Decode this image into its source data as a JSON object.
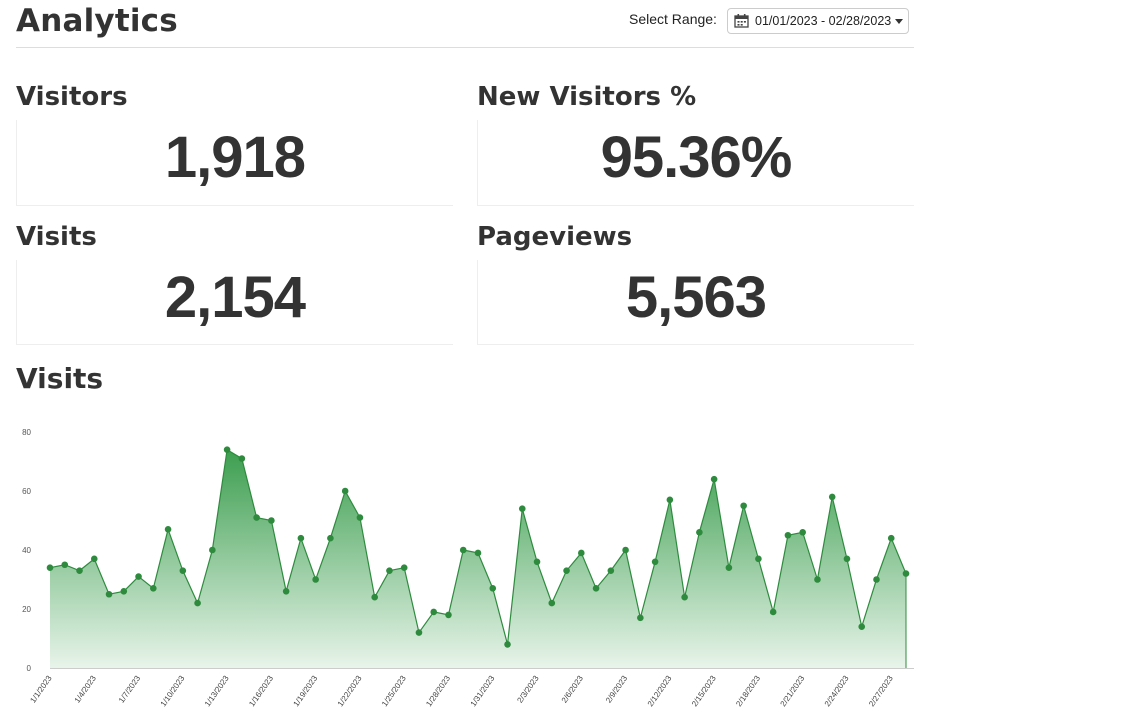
{
  "header": {
    "title": "Analytics",
    "range_label": "Select Range:",
    "range_value": "01/01/2023 - 02/28/2023",
    "calendar_icon": "calendar-icon",
    "dropdown_icon": "caret-down-icon"
  },
  "kpis": {
    "visitors": {
      "title": "Visitors",
      "value": "1,918"
    },
    "new_visitors": {
      "title": "New Visitors %",
      "value": "95.36%"
    },
    "visits": {
      "title": "Visits",
      "value": "2,154"
    },
    "pageviews": {
      "title": "Pageviews",
      "value": "5,563"
    }
  },
  "chart_title": "Visits",
  "colors": {
    "line": "#2e8b3e",
    "fill_top": "#3c9e4f",
    "fill_bottom": "#e8f4ea"
  },
  "chart_data": {
    "type": "area",
    "x": [
      "1/1/2023",
      "1/2/2023",
      "1/3/2023",
      "1/4/2023",
      "1/5/2023",
      "1/6/2023",
      "1/7/2023",
      "1/8/2023",
      "1/9/2023",
      "1/10/2023",
      "1/11/2023",
      "1/12/2023",
      "1/13/2023",
      "1/14/2023",
      "1/15/2023",
      "1/16/2023",
      "1/17/2023",
      "1/18/2023",
      "1/19/2023",
      "1/20/2023",
      "1/21/2023",
      "1/22/2023",
      "1/23/2023",
      "1/24/2023",
      "1/25/2023",
      "1/26/2023",
      "1/27/2023",
      "1/28/2023",
      "1/29/2023",
      "1/30/2023",
      "1/31/2023",
      "2/1/2023",
      "2/2/2023",
      "2/3/2023",
      "2/4/2023",
      "2/5/2023",
      "2/6/2023",
      "2/7/2023",
      "2/8/2023",
      "2/9/2023",
      "2/10/2023",
      "2/11/2023",
      "2/12/2023",
      "2/13/2023",
      "2/14/2023",
      "2/15/2023",
      "2/16/2023",
      "2/17/2023",
      "2/18/2023",
      "2/19/2023",
      "2/20/2023",
      "2/21/2023",
      "2/22/2023",
      "2/23/2023",
      "2/24/2023",
      "2/25/2023",
      "2/26/2023",
      "2/27/2023",
      "2/28/2023"
    ],
    "series": [
      {
        "values": [
          34,
          35,
          33,
          37,
          25,
          26,
          31,
          27,
          47,
          33,
          22,
          40,
          74,
          71,
          51,
          50,
          26,
          44,
          30,
          44,
          60,
          51,
          24,
          33,
          34,
          12,
          19,
          18,
          40,
          39,
          27,
          8,
          54,
          36,
          22,
          33,
          39,
          27,
          33,
          40,
          17,
          36,
          57,
          24,
          46,
          64,
          34,
          55,
          37,
          19,
          45,
          46,
          30,
          58,
          37,
          14,
          30,
          44,
          32
        ]
      }
    ],
    "x_tick_labels": [
      "1/1/2023",
      "1/4/2023",
      "1/7/2023",
      "1/10/2023",
      "1/13/2023",
      "1/16/2023",
      "1/19/2023",
      "1/22/2023",
      "1/25/2023",
      "1/28/2023",
      "1/31/2023",
      "2/3/2023",
      "2/6/2023",
      "2/9/2023",
      "2/12/2023",
      "2/15/2023",
      "2/18/2023",
      "2/21/2023",
      "2/24/2023",
      "2/27/2023"
    ],
    "y_ticks": [
      0,
      20,
      40,
      60,
      80
    ],
    "ylim": [
      0,
      80
    ],
    "grid": false,
    "xlabel": "",
    "ylabel": ""
  }
}
